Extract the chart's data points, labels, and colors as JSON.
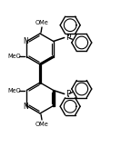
{
  "bg_color": "#ffffff",
  "line_color": "#000000",
  "lw": 1.0,
  "fs": 5.0,
  "figsize": [
    1.44,
    1.62
  ],
  "dpi": 100,
  "xlim": [
    0,
    144
  ],
  "ylim": [
    0,
    162
  ]
}
